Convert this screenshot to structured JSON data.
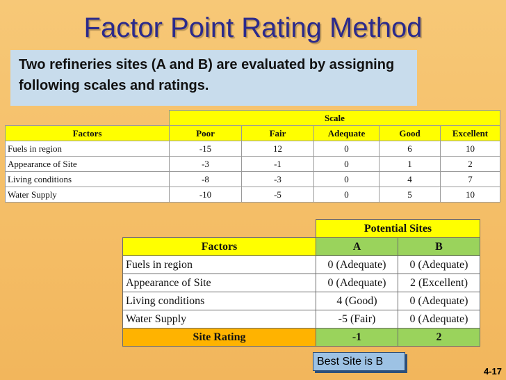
{
  "title": "Factor Point Rating Method",
  "intro": "Two refineries sites (A and B) are evaluated by assigning following scales and ratings.",
  "scale_table": {
    "group_header": "Scale",
    "header": [
      "Factors",
      "Poor",
      "Fair",
      "Adequate",
      "Good",
      "Excellent"
    ],
    "rows": [
      [
        "Fuels in region",
        "-15",
        "12",
        "0",
        "6",
        "10"
      ],
      [
        "Appearance of Site",
        "-3",
        "-1",
        "0",
        "1",
        "2"
      ],
      [
        "Living conditions",
        "-8",
        "-3",
        "0",
        "4",
        "7"
      ],
      [
        "Water Supply",
        "-10",
        "-5",
        "0",
        "5",
        "10"
      ]
    ]
  },
  "sites_table": {
    "group_header": "Potential Sites",
    "header": [
      "Factors",
      "A",
      "B"
    ],
    "rows": [
      [
        "Fuels in region",
        "0 (Adequate)",
        "0 (Adequate)"
      ],
      [
        "Appearance of Site",
        "0 (Adequate)",
        "2 (Excellent)"
      ],
      [
        "Living conditions",
        "4 (Good)",
        "0 (Adequate)"
      ],
      [
        "Water Supply",
        "-5 (Fair)",
        "0 (Adequate)"
      ]
    ],
    "total": [
      "Site Rating",
      "-1",
      "2"
    ]
  },
  "best_site": "Best Site is B",
  "slide_number": "4-17",
  "colors": {
    "title": "#2b2a8c",
    "background": "#f5c06a",
    "intro_box": "#c8dcec",
    "header_yellow": "#ffff00",
    "header_green": "#9ad35c",
    "total_orange": "#ffb300",
    "best_box": "#9dc2e4"
  }
}
